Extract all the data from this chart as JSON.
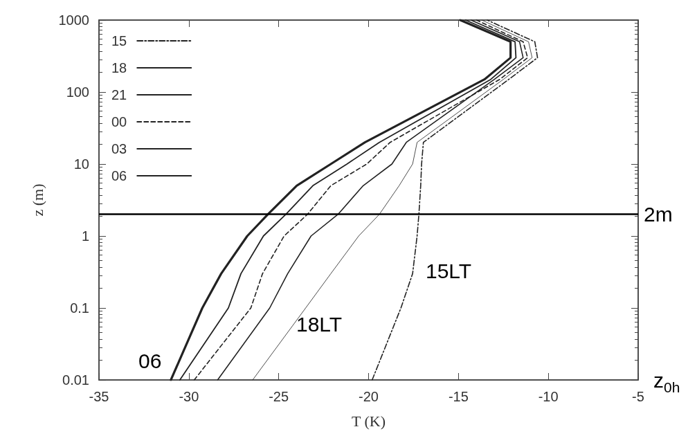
{
  "chart_data": {
    "type": "line",
    "xlabel": "T (K)",
    "ylabel": "z (m)",
    "xlim": [
      -35,
      -5
    ],
    "xticks": [
      -35,
      -30,
      -25,
      -20,
      -15,
      -10,
      -5
    ],
    "ylim": [
      0.01,
      1000
    ],
    "yticks": [
      0.01,
      0.1,
      1,
      10,
      100,
      1000
    ],
    "log": "y",
    "grid": false,
    "legend": "top left",
    "marker": "none",
    "series": [
      {
        "name": "15",
        "color": "#222222",
        "line_style": "dashdot",
        "x": [
          -19.8,
          -18.2,
          -17.55,
          -17.3,
          -17.2,
          -17.1,
          -17.05,
          -16.95,
          -12.2,
          -10.6,
          -10.75,
          -13.4
        ],
        "values": [
          0.01,
          0.1,
          0.3,
          1,
          2,
          5,
          10,
          20,
          150,
          300,
          500,
          1000
        ]
      },
      {
        "name": "18",
        "color": "#222222",
        "line_style": "solid",
        "x": [
          -26.45,
          -23.5,
          -22.1,
          -20.55,
          -19.4,
          -18.3,
          -17.55,
          -17.3,
          -12.5,
          -10.9,
          -11.1,
          -13.7
        ],
        "values": [
          0.01,
          0.1,
          0.3,
          1,
          2,
          5,
          10,
          20,
          150,
          300,
          500,
          1000
        ]
      },
      {
        "name": "21",
        "color": "#222222",
        "line_style": "solid",
        "x": [
          -28.4,
          -25.5,
          -24.5,
          -23.2,
          -21.7,
          -20.3,
          -18.7,
          -17.9,
          -13.0,
          -11.4,
          -11.6,
          -14.3
        ],
        "values": [
          0.01,
          0.1,
          0.3,
          1,
          2,
          5,
          10,
          20,
          150,
          300,
          500,
          1000
        ]
      },
      {
        "name": "00",
        "color": "#222222",
        "line_style": "dashed",
        "x": [
          -29.7,
          -26.55,
          -25.9,
          -24.7,
          -23.4,
          -22.1,
          -20.1,
          -18.8,
          -12.7,
          -11.15,
          -11.4,
          -14.0
        ],
        "values": [
          0.01,
          0.1,
          0.3,
          1,
          2,
          5,
          10,
          20,
          150,
          300,
          500,
          1000
        ]
      },
      {
        "name": "03",
        "color": "#222222",
        "line_style": "solid",
        "x": [
          -30.5,
          -27.8,
          -27.1,
          -25.85,
          -24.6,
          -23.1,
          -21.2,
          -19.4,
          -13.2,
          -11.8,
          -11.85,
          -14.6
        ],
        "values": [
          0.01,
          0.1,
          0.3,
          1,
          2,
          5,
          10,
          20,
          150,
          300,
          500,
          1000
        ]
      },
      {
        "name": "06",
        "color": "#222222",
        "line_style": "solid",
        "x": [
          -31.0,
          -29.25,
          -28.2,
          -26.75,
          -25.6,
          -24.0,
          -22.1,
          -20.2,
          -13.55,
          -12.1,
          -12.1,
          -14.9
        ],
        "values": [
          0.01,
          0.1,
          0.3,
          1,
          2,
          5,
          10,
          20,
          150,
          300,
          500,
          1000
        ]
      }
    ],
    "ref_lines": [
      {
        "axis": "y",
        "value": 2,
        "label": "2m",
        "color": "#000000",
        "line_style": "solid"
      }
    ],
    "annotations": [
      "06",
      "18LT",
      "15LT",
      "z$_{0h}$"
    ]
  }
}
